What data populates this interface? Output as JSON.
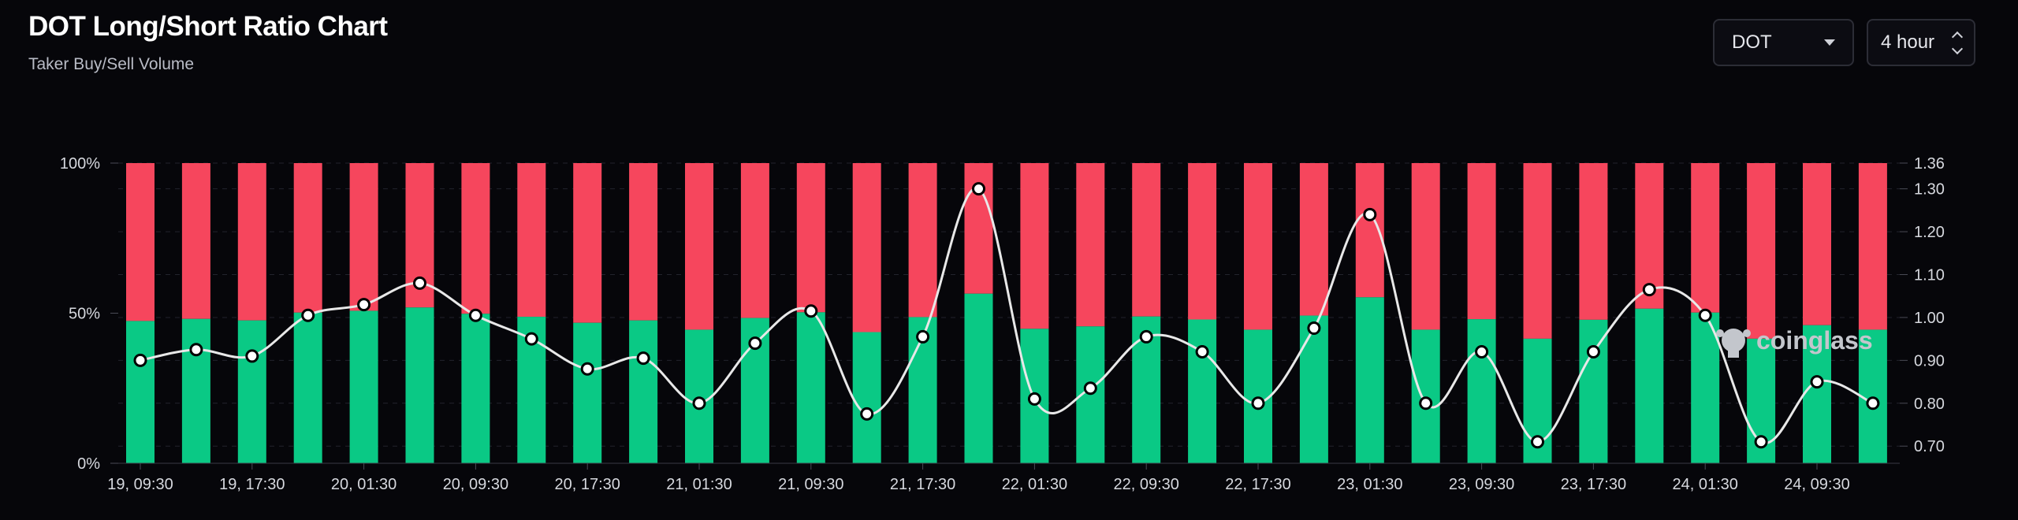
{
  "header": {
    "title": "DOT Long/Short Ratio Chart",
    "subtitle": "Taker Buy/Sell Volume"
  },
  "controls": {
    "symbol": {
      "value": "DOT",
      "icon": "chevron-down-icon"
    },
    "interval": {
      "value": "4 hour",
      "icon": "updown-chevron-icon"
    }
  },
  "watermark": {
    "text": "coinglass",
    "icon": "coinglass-logo-icon"
  },
  "chart_data": {
    "type": "bar",
    "stacked_percent": true,
    "xlabel": "",
    "ylabel": "",
    "y_left": {
      "ticks": [
        "100%",
        "50%",
        "0%"
      ],
      "range": [
        0,
        100
      ]
    },
    "y_right": {
      "ticks": [
        "1.36",
        "1.30",
        "1.20",
        "1.10",
        "1.00",
        "0.90",
        "0.80",
        "0.70"
      ],
      "range": [
        0.66,
        1.36
      ]
    },
    "x_tick_labels": [
      "19, 09:30",
      "19, 17:30",
      "20, 01:30",
      "20, 09:30",
      "20, 17:30",
      "21, 01:30",
      "21, 09:30",
      "21, 17:30",
      "22, 01:30",
      "22, 09:30",
      "22, 17:30",
      "23, 01:30",
      "23, 09:30",
      "23, 17:30",
      "24, 01:30",
      "24, 09:30"
    ],
    "grid": true,
    "colors": {
      "long": "#0ac985",
      "short": "#f6465d",
      "ratio_line": "#e8e8e8"
    },
    "series": [
      {
        "values": [
          47.4,
          48.1,
          47.6,
          50.2,
          50.8,
          51.9,
          49.8,
          48.8,
          46.8,
          47.6,
          44.5,
          48.4,
          50.3,
          43.7,
          48.7,
          56.5,
          44.8,
          45.6,
          48.9,
          47.9,
          44.5,
          49.2,
          55.3,
          44.5,
          48.0,
          41.5,
          47.8,
          51.5,
          50.2,
          41.5,
          46.0,
          44.5
        ]
      },
      {
        "values": [
          52.6,
          51.9,
          52.4,
          49.8,
          49.2,
          48.1,
          50.2,
          51.2,
          53.2,
          52.4,
          55.5,
          51.6,
          49.7,
          56.3,
          51.3,
          43.5,
          55.2,
          54.4,
          51.1,
          52.1,
          55.5,
          50.8,
          44.7,
          55.5,
          52.0,
          58.5,
          52.2,
          48.5,
          49.8,
          58.5,
          54.0,
          55.5
        ]
      },
      {
        "values": [
          0.9,
          0.925,
          0.91,
          1.005,
          1.03,
          1.08,
          1.005,
          0.95,
          0.88,
          0.905,
          0.8,
          0.94,
          1.015,
          0.775,
          0.955,
          1.3,
          0.81,
          0.835,
          0.955,
          0.92,
          0.8,
          0.975,
          1.24,
          0.8,
          0.92,
          0.71,
          0.92,
          1.065,
          1.005,
          0.71,
          0.85,
          0.8
        ]
      }
    ]
  }
}
